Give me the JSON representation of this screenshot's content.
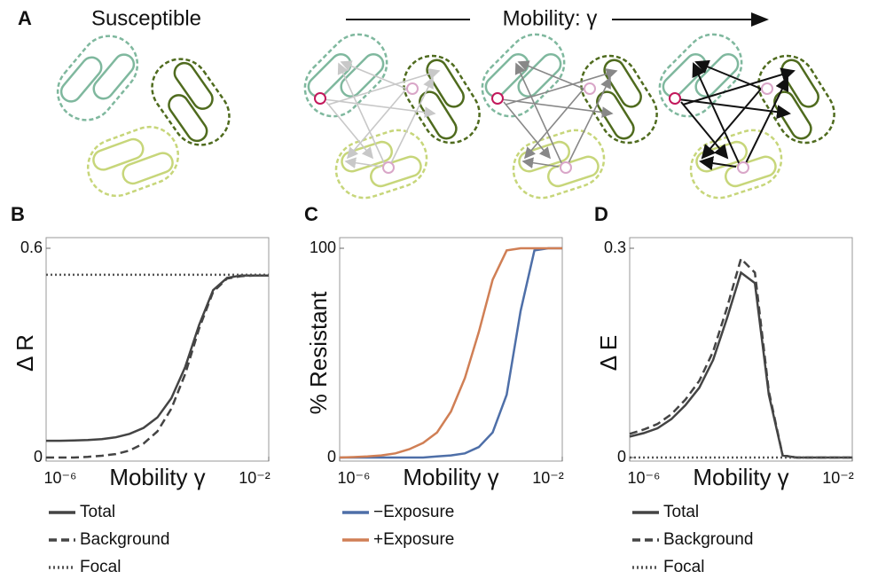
{
  "panel_a": {
    "label": "A",
    "left_title": "Susceptible",
    "right_title": "Mobility: γ"
  },
  "chart_data": [
    {
      "type": "line",
      "panel": "B",
      "xlabel": "Mobility γ",
      "ylabel": "Δ R",
      "xscale": "log",
      "xlim": [
        1e-06,
        0.01
      ],
      "xticks": [
        {
          "value": 1e-06,
          "label": "10⁻⁶"
        },
        {
          "value": 0.01,
          "label": "10⁻²"
        }
      ],
      "ylim": [
        0,
        0.6
      ],
      "yticks": [
        0,
        0.6
      ],
      "x": [
        1e-06,
        1.78e-06,
        3.16e-06,
        5.62e-06,
        1e-05,
        1.78e-05,
        3.16e-05,
        5.62e-05,
        0.0001,
        0.000178,
        0.000316,
        0.000562,
        0.001,
        0.00178,
        0.00316,
        0.00562,
        0.01
      ],
      "series": [
        {
          "name": "Total",
          "color": "#444444",
          "dash": "solid",
          "values": [
            0.048,
            0.048,
            0.049,
            0.05,
            0.053,
            0.058,
            0.068,
            0.085,
            0.115,
            0.17,
            0.26,
            0.38,
            0.48,
            0.515,
            0.522,
            0.522,
            0.522
          ]
        },
        {
          "name": "Background",
          "color": "#444444",
          "dash": "dashed",
          "values": [
            0,
            0,
            0,
            0.002,
            0.005,
            0.01,
            0.02,
            0.04,
            0.075,
            0.14,
            0.24,
            0.37,
            0.475,
            0.513,
            0.52,
            0.522,
            0.522
          ]
        },
        {
          "name": "Focal",
          "color": "#555555",
          "dash": "dotted",
          "values": [
            0.524,
            0.524,
            0.524,
            0.524,
            0.524,
            0.524,
            0.524,
            0.524,
            0.524,
            0.524,
            0.524,
            0.524,
            0.524,
            0.524,
            0.524,
            0.524,
            0.524
          ]
        }
      ]
    },
    {
      "type": "line",
      "panel": "C",
      "xlabel": "Mobility γ",
      "ylabel": "% Resistant",
      "xscale": "log",
      "xlim": [
        1e-06,
        0.01
      ],
      "xticks": [
        {
          "value": 1e-06,
          "label": "10⁻⁶"
        },
        {
          "value": 0.01,
          "label": "10⁻²"
        }
      ],
      "ylim": [
        0,
        100
      ],
      "yticks": [
        0,
        100
      ],
      "x": [
        1e-06,
        1.78e-06,
        3.16e-06,
        5.62e-06,
        1e-05,
        1.78e-05,
        3.16e-05,
        5.62e-05,
        0.0001,
        0.000178,
        0.000316,
        0.000562,
        0.001,
        0.00178,
        0.00316,
        0.00562,
        0.01
      ],
      "series": [
        {
          "name": "−Exposure",
          "color": "#4e6fa8",
          "dash": "solid",
          "values": [
            0,
            0,
            0,
            0,
            0,
            0,
            0,
            0.5,
            1,
            2,
            5,
            12,
            30,
            70,
            99,
            100,
            100
          ]
        },
        {
          "name": "+Exposure",
          "color": "#d07f55",
          "dash": "solid",
          "values": [
            0,
            0.2,
            0.5,
            1,
            2,
            4,
            7,
            12,
            22,
            38,
            60,
            85,
            99,
            100,
            100,
            100,
            100
          ]
        }
      ]
    },
    {
      "type": "line",
      "panel": "D",
      "xlabel": "Mobility γ",
      "ylabel": "Δ E",
      "xscale": "log",
      "xlim": [
        1e-06,
        0.01
      ],
      "xticks": [
        {
          "value": 1e-06,
          "label": "10⁻⁶"
        },
        {
          "value": 0.01,
          "label": "10⁻²"
        }
      ],
      "ylim": [
        0,
        0.3
      ],
      "yticks": [
        0,
        0.3
      ],
      "x": [
        1e-06,
        1.78e-06,
        3.16e-06,
        5.62e-06,
        1e-05,
        1.78e-05,
        3.16e-05,
        5.62e-05,
        0.0001,
        0.000178,
        0.000316,
        0.000562,
        0.001,
        0.00178,
        0.00316,
        0.00562,
        0.01
      ],
      "series": [
        {
          "name": "Total",
          "color": "#444444",
          "dash": "solid",
          "values": [
            0.03,
            0.035,
            0.042,
            0.055,
            0.075,
            0.1,
            0.14,
            0.2,
            0.265,
            0.25,
            0.09,
            0.003,
            0,
            0,
            0,
            0,
            0
          ]
        },
        {
          "name": "Background",
          "color": "#444444",
          "dash": "dashed",
          "values": [
            0.034,
            0.04,
            0.048,
            0.062,
            0.083,
            0.11,
            0.152,
            0.215,
            0.285,
            0.265,
            0.095,
            0.003,
            0,
            0,
            0,
            0,
            0
          ]
        },
        {
          "name": "Focal",
          "color": "#555555",
          "dash": "dotted",
          "values": [
            0,
            0,
            0,
            0,
            0,
            0,
            0,
            0,
            0,
            0,
            0,
            0,
            0,
            0,
            0,
            0,
            0
          ]
        }
      ]
    }
  ]
}
